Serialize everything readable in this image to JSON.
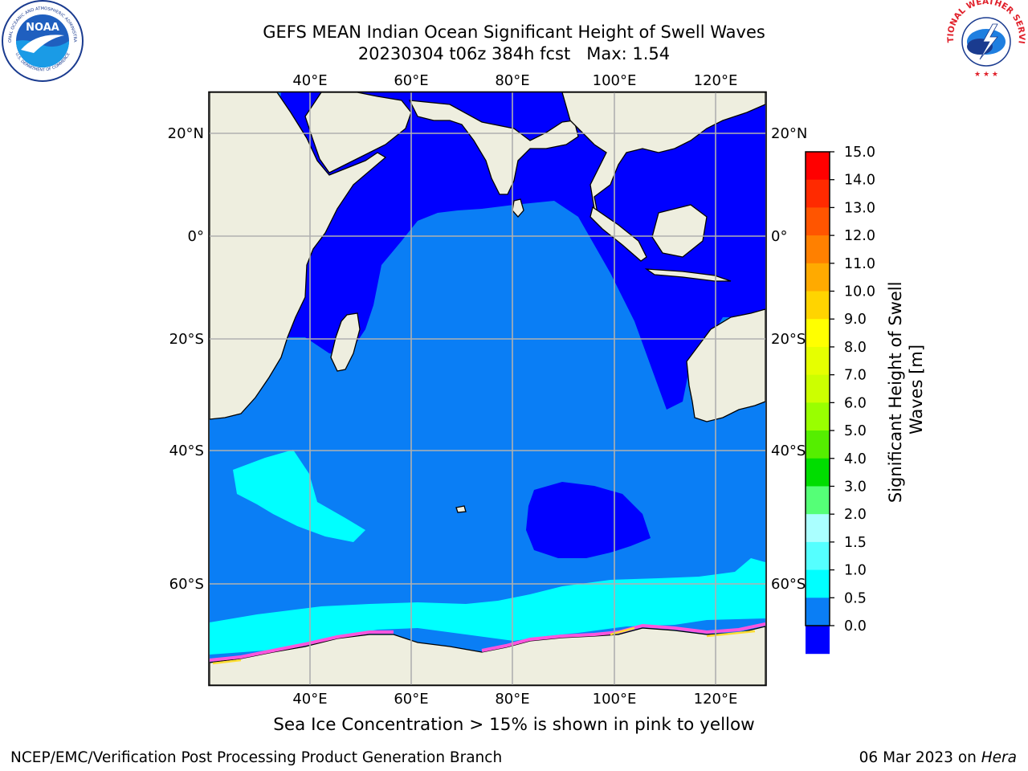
{
  "header": {
    "title_line1": "GEFS MEAN Indian Ocean Significant Height of Swell Waves",
    "title_line2": "20230304 t06z 384h fcst   Max: 1.54"
  },
  "logos": {
    "noaa": {
      "center_text": "NOAA",
      "ring_text": "NATIONAL OCEANIC AND ATMOSPHERIC ADMINISTRATION",
      "bottom_text": "U.S. DEPARTMENT OF COMMERCE"
    },
    "nws": {
      "ring_text": "NATIONAL WEATHER SERVICE"
    }
  },
  "map": {
    "lon_top_labels": [
      "40°E",
      "60°E",
      "80°E",
      "100°E",
      "120°E"
    ],
    "lon_bottom_labels": [
      "40°E",
      "60°E",
      "80°E",
      "100°E",
      "120°E"
    ],
    "lat_left_labels": [
      "20°N",
      "0°",
      "20°S",
      "40°S",
      "60°S"
    ],
    "lat_right_labels": [
      "20°N",
      "0°",
      "20°S",
      "40°S",
      "60°S"
    ],
    "colors": {
      "land": "#eeeedf",
      "ocean_0_0.5": "#0000ff",
      "ocean_0.5_1.0": "#0a7ef5",
      "ocean_1.0_1.5": "#00ffff",
      "ice_edge": "#ff55dd",
      "grid": "#b0b0b0"
    }
  },
  "colorbar": {
    "tick_labels": [
      "15.0",
      "14.0",
      "13.0",
      "12.0",
      "11.0",
      "10.0",
      "9.0",
      "8.0",
      "7.0",
      "6.0",
      "5.0",
      "4.0",
      "3.0",
      "2.0",
      "1.5",
      "1.0",
      "0.5",
      "0.0"
    ],
    "label": "Significant Height of Swell Waves [m]",
    "label_line1": "Significant Height of Swell",
    "label_line2": "Waves [m]",
    "colors": [
      "#ff0000",
      "#ff2a00",
      "#ff5500",
      "#ff8000",
      "#ffaa00",
      "#ffd400",
      "#ffff00",
      "#e6ff00",
      "#ccff00",
      "#99ff00",
      "#55ee00",
      "#00dd00",
      "#55ff77",
      "#aaffff",
      "#55ffff",
      "#00ffff",
      "#0a7ef5",
      "#0000ff"
    ]
  },
  "footer": {
    "sea_ice_note": "Sea Ice Concentration > 15% is shown in pink to yellow",
    "left": "NCEP/EMC/Verification Post Processing Product Generation Branch",
    "right_date": "06 Mar 2023 on ",
    "right_host": "Hera"
  }
}
